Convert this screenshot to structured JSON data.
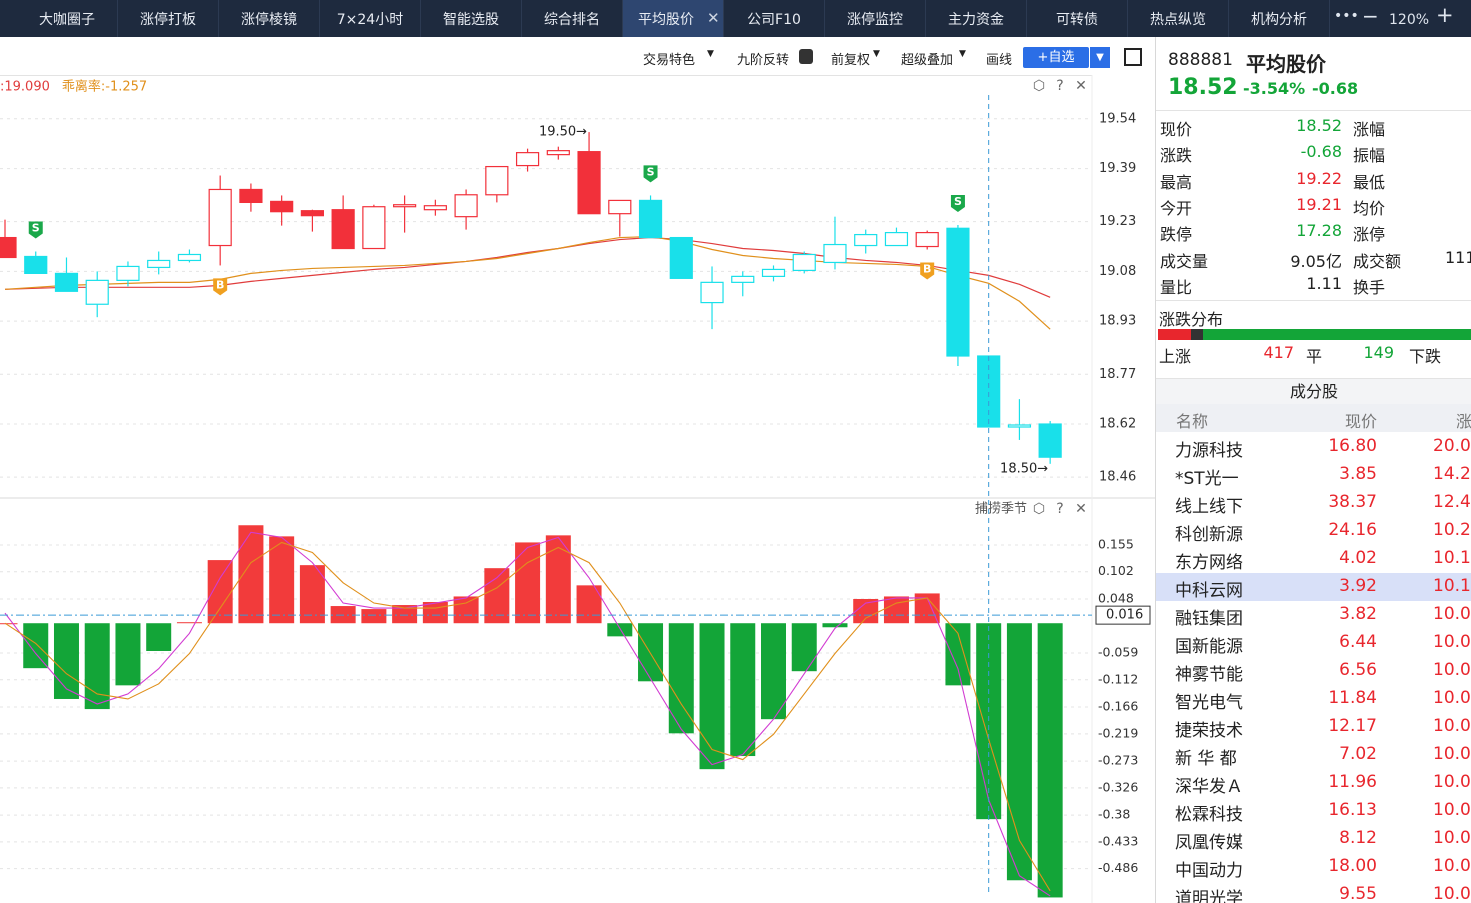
{
  "tabs": [
    "大咖圈子",
    "涨停打板",
    "涨停棱镜",
    "7×24小时",
    "智能选股",
    "综合排名",
    "平均股价",
    "公司F10",
    "涨停监控",
    "主力资金",
    "可转债",
    "热点纵览",
    "机构分析"
  ],
  "active_tab": 6,
  "zoom": "120%",
  "toolbar": [
    "交易特色",
    "九阶反转",
    "前复权",
    "超级叠加",
    "画线",
    "+自选"
  ],
  "chart_data": [
    {
      "type": "candlestick",
      "indicator_labels": [
        {
          "text": ":19.090",
          "color": "#e03c3c"
        },
        {
          "text": "乖离率:-1.257",
          "color": "#e0901c"
        }
      ],
      "open": [
        19.182,
        19.125,
        19.074,
        18.981,
        19.053,
        19.092,
        19.113,
        19.158,
        19.327,
        19.291,
        19.263,
        19.266,
        19.149,
        19.275,
        19.266,
        19.245,
        19.311,
        19.399,
        19.432,
        19.441,
        19.254,
        19.294,
        19.182,
        18.986,
        19.047,
        19.065,
        19.083,
        19.107,
        19.158,
        19.158,
        19.155,
        19.21,
        18.825,
        18.611,
        18.62
      ],
      "high": [
        19.236,
        19.14,
        19.122,
        19.08,
        19.11,
        19.14,
        19.146,
        19.369,
        19.345,
        19.309,
        19.266,
        19.309,
        19.281,
        19.309,
        19.296,
        19.327,
        19.396,
        19.45,
        19.456,
        19.5,
        19.294,
        19.309,
        19.182,
        19.095,
        19.08,
        19.098,
        19.14,
        19.245,
        19.206,
        19.212,
        19.203,
        19.22,
        18.825,
        18.695,
        18.629
      ],
      "low": [
        19.122,
        19.074,
        19.02,
        18.942,
        19.035,
        19.071,
        19.107,
        19.098,
        19.26,
        19.218,
        19.2,
        19.149,
        19.149,
        19.197,
        19.248,
        19.206,
        19.288,
        19.381,
        19.417,
        19.254,
        19.185,
        19.182,
        19.059,
        18.906,
        19.005,
        19.05,
        19.074,
        19.086,
        19.134,
        19.158,
        19.146,
        18.795,
        18.611,
        18.572,
        18.5
      ],
      "close": [
        19.122,
        19.074,
        19.02,
        19.053,
        19.095,
        19.113,
        19.131,
        19.327,
        19.288,
        19.26,
        19.248,
        19.149,
        19.275,
        19.281,
        19.278,
        19.311,
        19.396,
        19.438,
        19.444,
        19.254,
        19.294,
        19.182,
        19.059,
        19.047,
        19.065,
        19.086,
        19.131,
        19.161,
        19.191,
        19.197,
        19.197,
        18.825,
        18.611,
        18.617,
        18.52
      ],
      "colors": [
        "#f2303a",
        "#19e0ea",
        "#19e0ea",
        "#19e0ea",
        "#19e0ea",
        "#19e0ea",
        "#19e0ea",
        "#f2303a",
        "#f2303a",
        "#f2303a",
        "#f2303a",
        "#f2303a",
        "#f2303a",
        "#f2303a",
        "#f2303a",
        "#f2303a",
        "#f2303a",
        "#f2303a",
        "#f2303a",
        "#f2303a",
        "#f2303a",
        "#19e0ea",
        "#19e0ea",
        "#19e0ea",
        "#19e0ea",
        "#19e0ea",
        "#19e0ea",
        "#19e0ea",
        "#19e0ea",
        "#19e0ea",
        "#f2303a",
        "#19e0ea",
        "#19e0ea",
        "#19e0ea",
        "#19e0ea"
      ],
      "signals": [
        null,
        "S",
        null,
        null,
        null,
        null,
        null,
        "B",
        null,
        null,
        null,
        null,
        null,
        null,
        null,
        null,
        null,
        null,
        null,
        null,
        null,
        "S",
        null,
        null,
        null,
        null,
        null,
        null,
        null,
        null,
        "B",
        "S",
        null,
        null,
        null
      ],
      "annotations": [
        null,
        null,
        null,
        null,
        null,
        null,
        null,
        null,
        null,
        null,
        null,
        null,
        null,
        null,
        null,
        null,
        null,
        null,
        null,
        "19.50→",
        null,
        null,
        null,
        null,
        null,
        null,
        null,
        null,
        null,
        null,
        null,
        null,
        null,
        null,
        "18.50→"
      ],
      "series": [
        {
          "color": "#e03c3c",
          "values": [
            19.026,
            19.029,
            19.032,
            19.032,
            19.032,
            19.032,
            19.032,
            19.038,
            19.05,
            19.059,
            19.068,
            19.077,
            19.086,
            19.092,
            19.101,
            19.11,
            19.122,
            19.137,
            19.149,
            19.164,
            19.176,
            19.182,
            19.176,
            19.164,
            19.149,
            19.143,
            19.134,
            19.122,
            19.113,
            19.107,
            19.098,
            19.083,
            19.068,
            19.041,
            19.002
          ]
        },
        {
          "color": "#e0901c",
          "values": [
            19.026,
            19.032,
            19.038,
            19.041,
            19.044,
            19.047,
            19.047,
            19.056,
            19.074,
            19.083,
            19.089,
            19.092,
            19.095,
            19.098,
            19.104,
            19.11,
            19.119,
            19.134,
            19.149,
            19.167,
            19.182,
            19.185,
            19.17,
            19.146,
            19.128,
            19.119,
            19.113,
            19.107,
            19.104,
            19.101,
            19.095,
            19.068,
            19.044,
            18.99,
            18.906
          ]
        }
      ],
      "ylim": [
        18.4,
        19.666
      ],
      "yticks": [
        19.54,
        19.39,
        19.23,
        19.08,
        18.93,
        18.77,
        18.62,
        18.46
      ],
      "grid": true
    },
    {
      "type": "bar",
      "title": "捕捞季节",
      "values": [
        0,
        -0.089,
        -0.15,
        -0.17,
        -0.123,
        -0.055,
        0.002,
        0.125,
        0.194,
        0.172,
        0.115,
        0.034,
        0.028,
        0.036,
        0.042,
        0.053,
        0.109,
        0.16,
        0.174,
        0.075,
        -0.026,
        -0.115,
        -0.218,
        -0.289,
        -0.263,
        -0.19,
        -0.095,
        -0.008,
        0.048,
        0.053,
        0.059,
        -0.123,
        -0.388,
        -0.509,
        -0.543
      ],
      "positive_color": "#f23b3b",
      "negative_color": "#13a538",
      "series": [
        {
          "color": "#d23cd2",
          "values": [
            0.02,
            -0.06,
            -0.13,
            -0.16,
            -0.14,
            -0.09,
            -0.02,
            0.09,
            0.18,
            0.17,
            0.12,
            0.04,
            0.03,
            0.03,
            0.04,
            0.05,
            0.09,
            0.15,
            0.17,
            0.09,
            -0.01,
            -0.11,
            -0.21,
            -0.28,
            -0.26,
            -0.19,
            -0.1,
            -0.01,
            0.04,
            0.05,
            0.05,
            -0.09,
            -0.35,
            -0.5,
            -0.54
          ]
        },
        {
          "color": "#e0901c",
          "values": [
            0,
            -0.04,
            -0.1,
            -0.14,
            -0.15,
            -0.12,
            -0.06,
            0.03,
            0.12,
            0.16,
            0.14,
            0.08,
            0.04,
            0.03,
            0.03,
            0.04,
            0.07,
            0.12,
            0.15,
            0.12,
            0.04,
            -0.06,
            -0.16,
            -0.25,
            -0.27,
            -0.22,
            -0.14,
            -0.06,
            0.01,
            0.04,
            0.05,
            -0.02,
            -0.23,
            -0.43,
            -0.53
          ]
        }
      ],
      "crosshair_value": 0.016,
      "ylim": [
        -0.554,
        0.244
      ],
      "yticks": [
        0.155,
        0.102,
        0.048,
        -0.059,
        -0.112,
        -0.166,
        -0.219,
        -0.273,
        -0.326,
        -0.38,
        -0.433,
        -0.486
      ],
      "grid": true
    }
  ],
  "quote": {
    "code": "888881",
    "name": "平均股价",
    "price": "18.52",
    "change_pct": "-3.54%",
    "change": "-0.68",
    "rows": [
      {
        "label": "现价",
        "value": "18.52",
        "color": "#13a538",
        "label2": "涨幅"
      },
      {
        "label": "涨跌",
        "value": "-0.68",
        "color": "#13a538",
        "label2": "振幅"
      },
      {
        "label": "最高",
        "value": "19.22",
        "color": "#e8262d",
        "label2": "最低"
      },
      {
        "label": "今开",
        "value": "19.21",
        "color": "#e8262d",
        "label2": "均价"
      },
      {
        "label": "跌停",
        "value": "17.28",
        "color": "#13a538",
        "label2": "涨停"
      },
      {
        "label": "成交量",
        "value": "9.05亿",
        "color": "#222222",
        "label2": "成交额",
        "value2": "111"
      },
      {
        "label": "量比",
        "value": "1.11",
        "color": "#222222",
        "label2": "换手"
      }
    ]
  },
  "distribution": {
    "title": "涨跌分布",
    "up_label": "上涨",
    "up": "417",
    "flat_label": "平",
    "flat": "149",
    "down_label": "下跌"
  },
  "constituents": {
    "title": "成分股",
    "headers": [
      "名称",
      "现价",
      "涨"
    ],
    "selected": 5,
    "rows": [
      [
        "力源科技",
        "16.80",
        "20.0"
      ],
      [
        "*ST光一",
        "3.85",
        "14.2"
      ],
      [
        "线上线下",
        "38.37",
        "12.4"
      ],
      [
        "科创新源",
        "24.16",
        "10.2"
      ],
      [
        "东方网络",
        "4.02",
        "10.1"
      ],
      [
        "中科云网",
        "3.92",
        "10.1"
      ],
      [
        "融钰集团",
        "3.82",
        "10.0"
      ],
      [
        "国新能源",
        "6.44",
        "10.0"
      ],
      [
        "神雾节能",
        "6.56",
        "10.0"
      ],
      [
        "智光电气",
        "11.84",
        "10.0"
      ],
      [
        "捷荣技术",
        "12.17",
        "10.0"
      ],
      [
        "新 华 都",
        "7.02",
        "10.0"
      ],
      [
        "深华发Ａ",
        "11.96",
        "10.0"
      ],
      [
        "松霖科技",
        "16.13",
        "10.0"
      ],
      [
        "凤凰传媒",
        "8.12",
        "10.0"
      ],
      [
        "中国动力",
        "18.00",
        "10.0"
      ],
      [
        "道明光学",
        "9.55",
        "10.0"
      ]
    ]
  }
}
